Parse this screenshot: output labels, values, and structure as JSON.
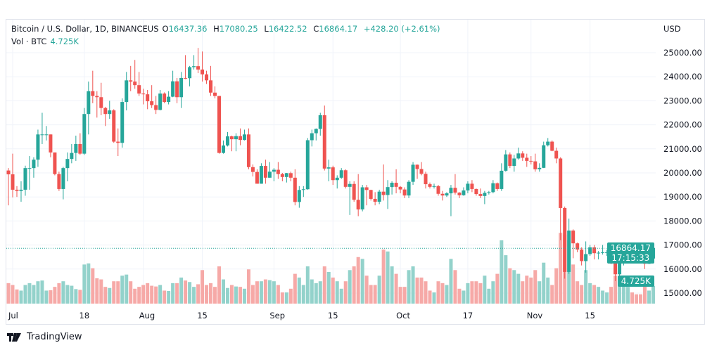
{
  "header": {
    "symbol": "Bitcoin / U.S. Dollar, 1D, BINANCEUS",
    "o_label": "O",
    "o": "16437.36",
    "h_label": "H",
    "h": "17080.25",
    "l_label": "L",
    "l": "16422.52",
    "c_label": "C",
    "c": "16864.17",
    "change": "+428.20 (+2.61%)",
    "vol_label": "Vol · BTC",
    "vol": "4.725K"
  },
  "last_price": {
    "price": "16864.17",
    "countdown": "17:15:33",
    "volume": "4.725K"
  },
  "brand": "TradingView",
  "colors": {
    "up": "#26a69a",
    "down": "#ef5350",
    "up_vol": "#93d2cb",
    "down_vol": "#f6a9a7",
    "grid": "#f0f3fa"
  },
  "chart_data": {
    "type": "candlestick",
    "title": "Bitcoin / U.S. Dollar, 1D, BINANCEUS",
    "currency_label": "USD",
    "start_date": "2022-06-30",
    "end_date": "2022-11-30",
    "ylim": [
      14400,
      26500
    ],
    "y_ticks": [
      "25000.00",
      "24000.00",
      "23000.00",
      "22000.00",
      "21000.00",
      "20000.00",
      "19000.00",
      "18000.00",
      "17000.00",
      "16000.00",
      "15000.00"
    ],
    "x_ticks": [
      {
        "label": "Jul",
        "day": 1
      },
      {
        "label": "18",
        "day": 18
      },
      {
        "label": "Aug",
        "day": 32
      },
      {
        "label": "15",
        "day": 46
      },
      {
        "label": "Sep",
        "day": 63
      },
      {
        "label": "15",
        "day": 77
      },
      {
        "label": "Oct",
        "day": 93
      },
      {
        "label": "17",
        "day": 109
      },
      {
        "label": "Nov",
        "day": 124
      },
      {
        "label": "15",
        "day": 138
      }
    ],
    "first_open": 20100,
    "close": [
      19940,
      19300,
      19250,
      19300,
      20200,
      20200,
      20550,
      21600,
      21600,
      21600,
      20850,
      19950,
      19330,
      20200,
      20580,
      20830,
      21200,
      20800,
      22450,
      23400,
      23200,
      23150,
      22700,
      22450,
      22600,
      21300,
      21250,
      22950,
      23850,
      23800,
      23650,
      23300,
      23270,
      22980,
      22820,
      22620,
      23300,
      22950,
      23170,
      23810,
      23150,
      23950,
      23940,
      24400,
      24440,
      24300,
      24100,
      23850,
      23340,
      23200,
      20830,
      21140,
      21520,
      21400,
      21530,
      21370,
      21600,
      20240,
      20040,
      19550,
      20290,
      19800,
      20050,
      20130,
      19950,
      19830,
      19990,
      19800,
      18790,
      19290,
      19320,
      21360,
      21650,
      21830,
      22400,
      20180,
      20230,
      19700,
      19800,
      20110,
      19420,
      19540,
      18880,
      18480,
      19400,
      19290,
      18920,
      18800,
      19220,
      19080,
      19410,
      19590,
      19420,
      19310,
      19060,
      19630,
      20340,
      20160,
      19960,
      19530,
      19420,
      19450,
      19130,
      19060,
      19150,
      19380,
      19180,
      19070,
      19270,
      19550,
      19330,
      19120,
      19040,
      19170,
      19200,
      19570,
      19330,
      20090,
      20770,
      20290,
      20600,
      20810,
      20630,
      20500,
      20480,
      20150,
      20210,
      21150,
      21300,
      20920,
      20600,
      18540,
      15880,
      17600,
      17070,
      16810,
      16330,
      16620,
      16900,
      16660,
      16680,
      16700,
      16700,
      16280,
      15780,
      16230,
      16600,
      16600,
      16520,
      16460,
      16440,
      16220,
      16437.36,
      16864.17
    ],
    "high": [
      20200,
      20800,
      19450,
      19650,
      20300,
      20700,
      20650,
      21800,
      22500,
      21950,
      21600,
      20850,
      20050,
      20250,
      20850,
      21200,
      21550,
      21650,
      22700,
      23800,
      24250,
      23400,
      23750,
      22750,
      23000,
      22650,
      21850,
      23100,
      24200,
      24450,
      24700,
      24200,
      23500,
      23450,
      23650,
      23200,
      23450,
      23350,
      23400,
      24250,
      23950,
      24200,
      24900,
      24450,
      24900,
      25200,
      25050,
      24250,
      24450,
      23600,
      23200,
      21350,
      21700,
      21550,
      21650,
      21850,
      21800,
      21850,
      20350,
      20150,
      20400,
      20550,
      20450,
      20200,
      20450,
      20000,
      20000,
      20050,
      20150,
      19450,
      19450,
      21450,
      21800,
      21850,
      22500,
      22800,
      20550,
      20300,
      19900,
      20200,
      20150,
      19650,
      19650,
      19950,
      19500,
      19500,
      19300,
      19200,
      19300,
      20350,
      19700,
      19650,
      20150,
      19450,
      19400,
      19700,
      20450,
      20350,
      20450,
      20050,
      19600,
      19550,
      19500,
      19250,
      19200,
      19500,
      19950,
      19200,
      19400,
      19650,
      19700,
      19350,
      19350,
      19250,
      19250,
      19700,
      19600,
      20400,
      20950,
      20850,
      20750,
      21050,
      20900,
      20800,
      20700,
      20800,
      20400,
      21300,
      21450,
      21350,
      21050,
      20650,
      18600,
      18100,
      17650,
      17100,
      16900,
      17150,
      17000,
      17000,
      16750,
      17000,
      16800,
      16750,
      16300,
      16300,
      16700,
      16800,
      16600,
      16650,
      16600,
      16500,
      16550,
      17080.25
    ],
    "low": [
      18650,
      18980,
      19000,
      18800,
      19050,
      19300,
      19800,
      20250,
      21200,
      21350,
      20650,
      19900,
      19250,
      18900,
      19650,
      20400,
      20500,
      20750,
      20750,
      21600,
      22900,
      22300,
      22400,
      21950,
      22250,
      21250,
      20700,
      21050,
      22600,
      23400,
      23500,
      23200,
      22850,
      22650,
      22700,
      22450,
      22600,
      22900,
      22850,
      23150,
      22900,
      22700,
      23900,
      23600,
      24300,
      24150,
      23800,
      23700,
      23200,
      23100,
      20800,
      20800,
      21100,
      20900,
      20900,
      21150,
      21350,
      20150,
      19850,
      19550,
      19550,
      19550,
      19800,
      19650,
      19750,
      19650,
      19600,
      19650,
      18650,
      18550,
      19000,
      19300,
      21100,
      21350,
      21550,
      20100,
      19650,
      19500,
      19350,
      19750,
      19350,
      18250,
      18800,
      18200,
      18400,
      18650,
      18850,
      18650,
      18700,
      18850,
      18500,
      19100,
      19150,
      19150,
      18950,
      18950,
      19500,
      19750,
      19900,
      19350,
      19350,
      19350,
      19050,
      18850,
      19000,
      18200,
      19100,
      18950,
      19050,
      19150,
      19200,
      19050,
      18950,
      18700,
      19100,
      19150,
      19250,
      19250,
      20050,
      20200,
      20050,
      20550,
      20500,
      20250,
      20350,
      20050,
      20050,
      20200,
      21100,
      20900,
      20400,
      17200,
      15600,
      15800,
      16450,
      16700,
      16150,
      15850,
      16550,
      16400,
      16400,
      16600,
      16550,
      16200,
      15500,
      15650,
      16150,
      16450,
      16350,
      16450,
      16400,
      16000,
      16200,
      16422.52
    ],
    "volume_k": [
      5.5,
      5.0,
      3.8,
      3.5,
      5.0,
      5.5,
      5.0,
      6.0,
      6.2,
      3.5,
      3.6,
      4.5,
      5.5,
      6.0,
      5.0,
      4.8,
      3.9,
      3.7,
      10.5,
      10.8,
      9.5,
      6.8,
      6.5,
      4.5,
      4.2,
      6.0,
      6.0,
      7.5,
      7.8,
      6.0,
      4.0,
      4.5,
      5.0,
      5.5,
      4.8,
      4.6,
      5.0,
      3.5,
      3.4,
      5.5,
      5.5,
      7.0,
      6.2,
      5.8,
      4.5,
      5.2,
      9.0,
      5.0,
      5.5,
      4.5,
      10.0,
      6.5,
      4.2,
      5.0,
      4.6,
      4.5,
      4.0,
      9.2,
      5.0,
      6.0,
      6.0,
      6.5,
      6.3,
      6.0,
      5.0,
      3.0,
      3.0,
      4.0,
      8.0,
      7.0,
      5.0,
      10.0,
      6.5,
      5.5,
      6.0,
      10.0,
      8.5,
      7.0,
      6.0,
      4.0,
      6.0,
      9.0,
      10.0,
      12.5,
      12.0,
      7.5,
      5.0,
      5.0,
      7.5,
      14.5,
      14.0,
      10.0,
      8.0,
      4.5,
      4.5,
      9.0,
      10.0,
      7.0,
      7.0,
      6.0,
      3.5,
      3.0,
      6.0,
      5.5,
      5.0,
      12.0,
      9.0,
      4.0,
      3.5,
      5.5,
      6.0,
      6.0,
      5.5,
      7.5,
      4.0,
      6.0,
      8.0,
      17.0,
      13.0,
      9.5,
      9.0,
      8.0,
      6.0,
      7.5,
      7.0,
      9.0,
      6.0,
      11.0,
      7.0,
      5.0,
      9.5,
      19.0,
      18.5,
      17.0,
      10.5,
      6.0,
      5.0,
      9.0,
      5.5,
      5.0,
      4.5,
      3.5,
      3.0,
      4.5,
      7.5,
      7.0,
      6.0,
      4.5,
      3.0,
      2.5,
      2.5,
      5.5,
      3.5,
      4.725
    ]
  }
}
